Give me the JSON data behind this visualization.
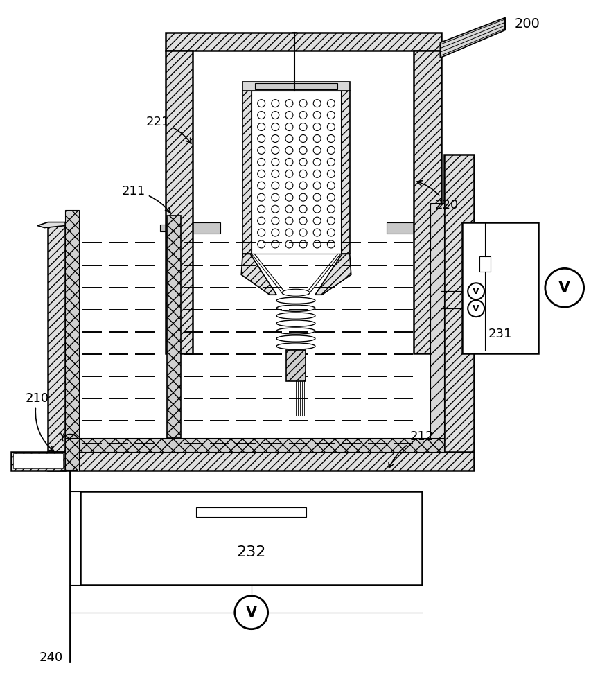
{
  "bg_color": "#ffffff",
  "line_color": "#000000",
  "label_200": "200",
  "label_220": "220",
  "label_221": "221",
  "label_210": "210",
  "label_211": "211",
  "label_212": "212",
  "label_231": "231",
  "label_232": "232",
  "label_240": "240",
  "fig_width": 8.54,
  "fig_height": 10.0
}
